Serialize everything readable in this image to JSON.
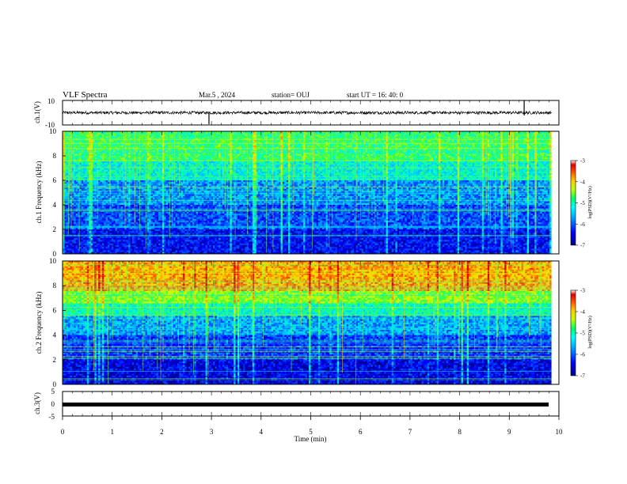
{
  "header": {
    "title": "VLF Spectra",
    "date": "Mar.5  , 2024",
    "station": "station= OUJ",
    "start": "start  UT  =   16: 40: 0"
  },
  "colors": {
    "colormap": [
      "#000080",
      "#0000ff",
      "#0080ff",
      "#00e0ff",
      "#40ff80",
      "#c8ff00",
      "#ffd000",
      "#ff6000",
      "#e00000",
      "#ffffff"
    ],
    "trace": "#000000"
  },
  "chart_data": [
    {
      "type": "line",
      "name": "ch1-waveform",
      "ylabel": "ch.1(V)",
      "ylim": [
        -10,
        10
      ],
      "yticks": [
        "10",
        "-10"
      ],
      "x_range": [
        0,
        10
      ],
      "description_values": {
        "baseline": 0,
        "noise_amplitude": 1.2,
        "spikes_at_min": [
          2.95,
          9.3
        ]
      }
    },
    {
      "type": "heatmap",
      "name": "ch1-spectrogram",
      "ylabel": "ch.1 Frequency  (kHz)",
      "ylim": [
        0,
        10
      ],
      "yticks": [
        "0",
        "2",
        "4",
        "6",
        "8",
        "10"
      ],
      "x_range": [
        0,
        9.85
      ],
      "colorbar": {
        "label": "log(PSD)(V²/Hz)",
        "range": [
          -7,
          -3
        ],
        "ticks": [
          "-3",
          "-4",
          "-5",
          "-6",
          "-7"
        ]
      }
    },
    {
      "type": "heatmap",
      "name": "ch2-spectrogram",
      "ylabel": "ch.2 Frequency  (kHz)",
      "ylim": [
        0,
        10
      ],
      "yticks": [
        "0",
        "2",
        "4",
        "6",
        "8",
        "10"
      ],
      "x_range": [
        0,
        9.85
      ],
      "colorbar": {
        "label": "log(PSD)(V²/Hz)",
        "range": [
          -7,
          -3
        ],
        "ticks": [
          "-3",
          "-4",
          "-5",
          "-6",
          "-7"
        ]
      }
    },
    {
      "type": "line",
      "name": "ch3-waveform",
      "ylabel": "ch.3(V)",
      "ylim": [
        -5,
        5
      ],
      "yticks": [
        "5",
        "0",
        "-5"
      ],
      "x_range": [
        0,
        9.85
      ],
      "description_values": {
        "level": -1
      }
    }
  ],
  "xaxis": {
    "label": "Time  (min)",
    "range": [
      0,
      10
    ],
    "ticks": [
      "0",
      "1",
      "2",
      "3",
      "4",
      "5",
      "6",
      "7",
      "8",
      "9",
      "10"
    ]
  }
}
